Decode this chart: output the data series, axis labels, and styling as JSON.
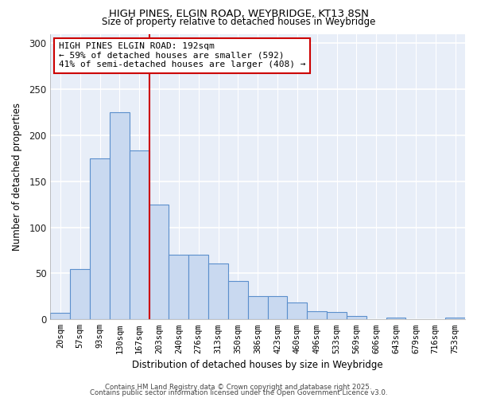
{
  "title1": "HIGH PINES, ELGIN ROAD, WEYBRIDGE, KT13 8SN",
  "title2": "Size of property relative to detached houses in Weybridge",
  "xlabel": "Distribution of detached houses by size in Weybridge",
  "ylabel": "Number of detached properties",
  "bar_color": "#c9d9f0",
  "bar_edge_color": "#5b8fcc",
  "categories": [
    "20sqm",
    "57sqm",
    "93sqm",
    "130sqm",
    "167sqm",
    "203sqm",
    "240sqm",
    "276sqm",
    "313sqm",
    "350sqm",
    "386sqm",
    "423sqm",
    "460sqm",
    "496sqm",
    "533sqm",
    "569sqm",
    "606sqm",
    "643sqm",
    "679sqm",
    "716sqm",
    "753sqm"
  ],
  "values": [
    7,
    55,
    175,
    225,
    183,
    125,
    70,
    70,
    61,
    42,
    25,
    25,
    18,
    9,
    8,
    4,
    0,
    2,
    0,
    0,
    2
  ],
  "vline_x": 5,
  "vline_color": "#cc0000",
  "annotation_text": "HIGH PINES ELGIN ROAD: 192sqm\n← 59% of detached houses are smaller (592)\n41% of semi-detached houses are larger (408) →",
  "annotation_box_color": "#ffffff",
  "annotation_box_edge": "#cc0000",
  "ylim": [
    0,
    310
  ],
  "yticks": [
    0,
    50,
    100,
    150,
    200,
    250,
    300
  ],
  "plot_bg_color": "#e8eef8",
  "figure_bg_color": "#ffffff",
  "grid_color": "#ffffff",
  "footer1": "Contains HM Land Registry data © Crown copyright and database right 2025.",
  "footer2": "Contains public sector information licensed under the Open Government Licence v3.0."
}
